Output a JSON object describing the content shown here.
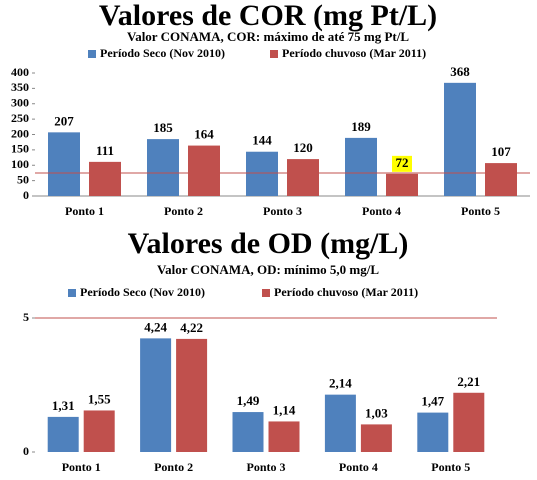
{
  "chart_data": [
    {
      "type": "bar",
      "title": "Valores de COR (mg Pt/L)",
      "subtitle": "Valor CONAMA, COR: máximo de até 75 mg Pt/L",
      "categories": [
        "Ponto 1",
        "Ponto 2",
        "Ponto 3",
        "Ponto 4",
        "Ponto 5"
      ],
      "series": [
        {
          "name": "Período  Seco  (Nov 2010)",
          "color": "#4f81bd",
          "values": [
            207,
            185,
            144,
            189,
            368
          ]
        },
        {
          "name": "Período chuvoso (Mar 2011)",
          "color": "#c0504d",
          "values": [
            111,
            164,
            120,
            72,
            107
          ]
        }
      ],
      "ylim": [
        0,
        400
      ],
      "yticks": [
        0,
        50,
        100,
        150,
        200,
        250,
        300,
        350,
        400
      ],
      "reference_line": 75,
      "reference_color": "#c0504d",
      "highlight": {
        "series": 1,
        "index": 3,
        "color": "#ffff00"
      }
    },
    {
      "type": "bar",
      "title": "Valores de OD (mg/L)",
      "subtitle": "Valor CONAMA, OD: mínimo 5,0 mg/L",
      "categories": [
        "Ponto 1",
        "Ponto 2",
        "Ponto 3",
        "Ponto 4",
        "Ponto 5"
      ],
      "series": [
        {
          "name": "Período  Seco  (Nov 2010)",
          "color": "#4f81bd",
          "values": [
            1.31,
            4.24,
            1.49,
            2.14,
            1.47
          ],
          "value_labels": [
            "1,31",
            "4,24",
            "1,49",
            "2,14",
            "1,47"
          ]
        },
        {
          "name": "Período chuvoso (Mar 2011)",
          "color": "#c0504d",
          "values": [
            1.55,
            4.22,
            1.14,
            1.03,
            2.21
          ],
          "value_labels": [
            "1,55",
            "4,22",
            "1,14",
            "1,03",
            "2,21"
          ]
        }
      ],
      "ylim": [
        0,
        5
      ],
      "yticks": [
        0,
        5
      ],
      "reference_line": 5,
      "reference_color": "#c0504d"
    }
  ]
}
